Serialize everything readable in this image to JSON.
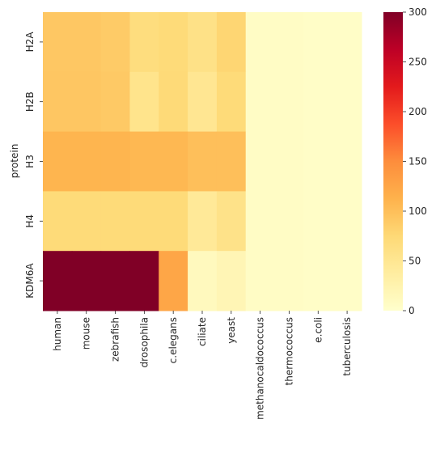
{
  "chart_data": {
    "type": "heatmap",
    "title": "",
    "xlabel": "",
    "ylabel": "protein",
    "rows": [
      "H2A",
      "H2B",
      "H3",
      "H4",
      "KDM6A"
    ],
    "columns": [
      "human",
      "mouse",
      "zebrafish",
      "drosophila",
      "c.elegans",
      "ciliate",
      "yeast",
      "methanocaldococcus",
      "thermococcus",
      "e.coli",
      "tuberculosis"
    ],
    "values": [
      [
        92,
        92,
        88,
        68,
        72,
        60,
        78,
        6,
        6,
        4,
        4
      ],
      [
        93,
        93,
        90,
        55,
        73,
        50,
        72,
        6,
        6,
        4,
        4
      ],
      [
        110,
        110,
        110,
        107,
        107,
        100,
        100,
        6,
        6,
        4,
        4
      ],
      [
        72,
        72,
        72,
        72,
        72,
        45,
        58,
        6,
        6,
        4,
        4
      ],
      [
        300,
        300,
        300,
        300,
        125,
        12,
        20,
        6,
        6,
        4,
        4
      ]
    ],
    "colorbar": {
      "colormap": "YlOrRd",
      "range": [
        0,
        300
      ],
      "ticks": [
        0,
        50,
        100,
        150,
        200,
        250,
        300
      ]
    }
  }
}
